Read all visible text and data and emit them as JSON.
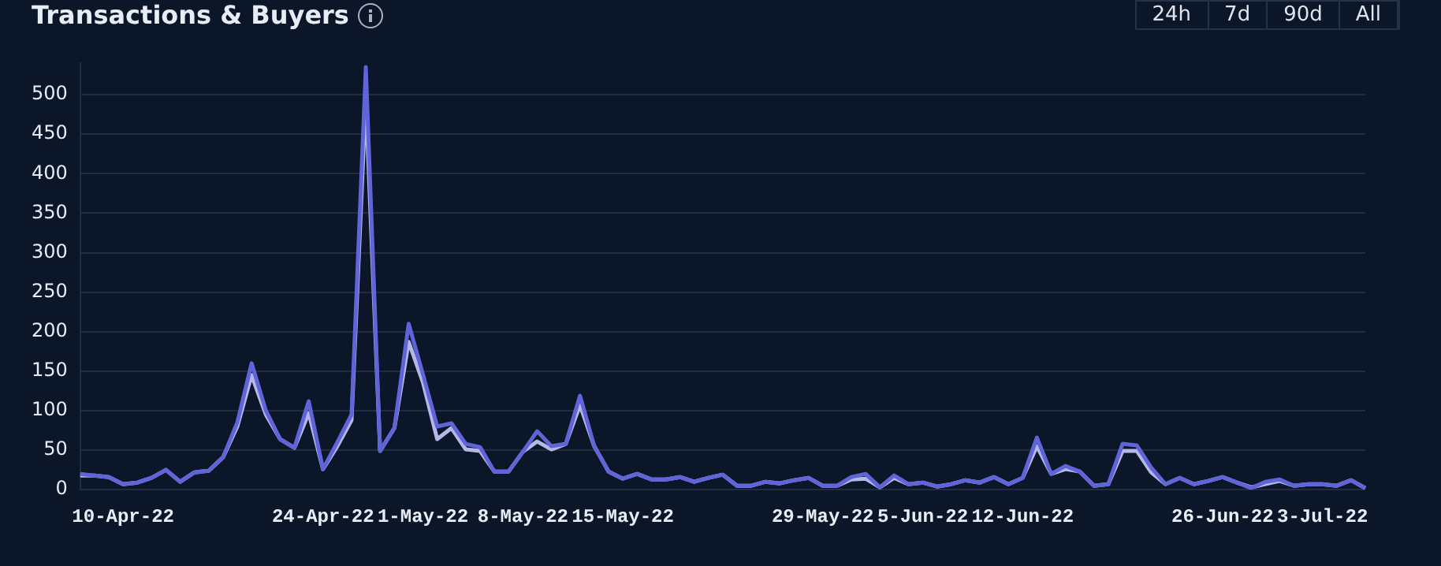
{
  "chart_data": {
    "type": "line",
    "title": "Transactions & Buyers",
    "annotations": [
      "24h",
      "7d",
      "90d",
      "All"
    ],
    "categories": [
      null,
      null,
      null,
      "10-Apr-22",
      null,
      null,
      null,
      null,
      null,
      null,
      null,
      null,
      null,
      null,
      null,
      null,
      null,
      "24-Apr-22",
      null,
      null,
      null,
      null,
      null,
      null,
      "1-May-22",
      null,
      null,
      null,
      null,
      null,
      null,
      "8-May-22",
      null,
      null,
      null,
      null,
      null,
      null,
      "15-May-22",
      null,
      null,
      null,
      null,
      null,
      null,
      null,
      null,
      null,
      null,
      null,
      null,
      null,
      "29-May-22",
      null,
      null,
      null,
      null,
      null,
      null,
      "5-Jun-22",
      null,
      null,
      null,
      null,
      null,
      null,
      "12-Jun-22",
      null,
      null,
      null,
      null,
      null,
      null,
      null,
      null,
      null,
      null,
      null,
      null,
      null,
      "26-Jun-22",
      null,
      null,
      null,
      null,
      null,
      null,
      "3-Jul-22",
      null,
      null,
      null
    ],
    "series": [
      {
        "color": "#5f64d8",
        "values": [
          20,
          18,
          16,
          7,
          9,
          15,
          25,
          10,
          22,
          24,
          41,
          85,
          160,
          100,
          64,
          53,
          112,
          26,
          60,
          95,
          535,
          49,
          78,
          210,
          146,
          80,
          84,
          58,
          54,
          23,
          23,
          48,
          74,
          55,
          58,
          119,
          55,
          23,
          14,
          20,
          13,
          13,
          16,
          10,
          15,
          19,
          5,
          5,
          10,
          8,
          12,
          15,
          5,
          5,
          16,
          20,
          3,
          18,
          7,
          9,
          4,
          7,
          12,
          9,
          16,
          7,
          15,
          66,
          20,
          30,
          23,
          5,
          7,
          58,
          56,
          28,
          7,
          15,
          7,
          11,
          16,
          9,
          2,
          10,
          13,
          5,
          7,
          7,
          5,
          12,
          2
        ]
      },
      {
        "color": "#b3b8e8",
        "values": [
          18,
          18,
          16,
          7,
          9,
          15,
          25,
          10,
          22,
          24,
          41,
          80,
          145,
          95,
          64,
          53,
          97,
          26,
          55,
          88,
          496,
          49,
          78,
          187,
          136,
          64,
          78,
          51,
          49,
          23,
          23,
          48,
          61,
          51,
          58,
          107,
          55,
          23,
          14,
          20,
          13,
          13,
          16,
          10,
          15,
          19,
          5,
          5,
          10,
          8,
          12,
          15,
          5,
          5,
          13,
          14,
          3,
          15,
          7,
          9,
          4,
          7,
          12,
          9,
          16,
          7,
          15,
          55,
          20,
          26,
          23,
          5,
          7,
          49,
          49,
          22,
          7,
          15,
          7,
          11,
          16,
          9,
          3,
          7,
          11,
          5,
          7,
          7,
          5,
          12,
          2
        ]
      }
    ],
    "ylim": [
      0,
      540
    ],
    "yticks": [
      0,
      50,
      100,
      150,
      200,
      250,
      300,
      350,
      400,
      450,
      500
    ],
    "grid": "y",
    "legend": false,
    "marker": "none",
    "line_style": "solid"
  }
}
